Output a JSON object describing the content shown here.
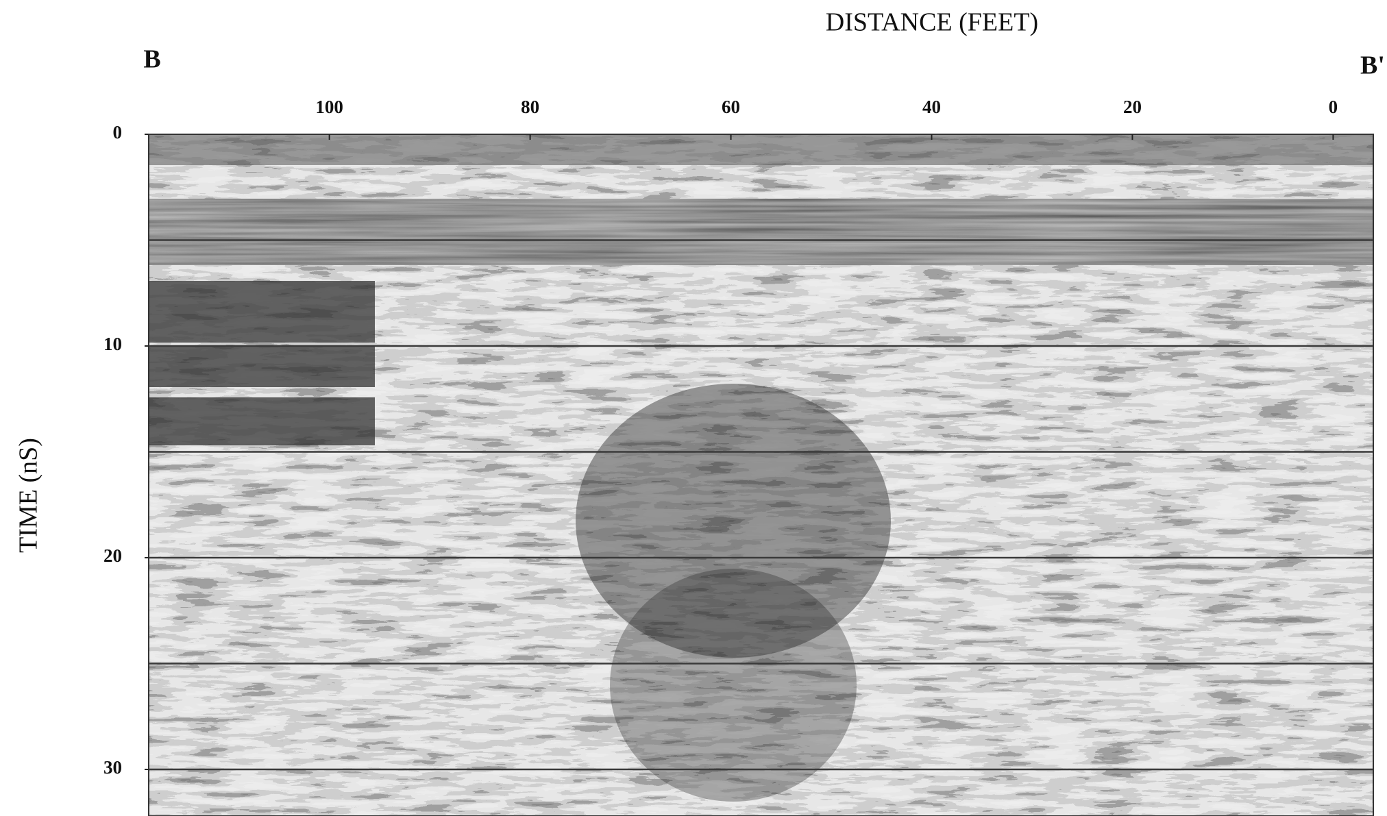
{
  "chart_data": {
    "type": "radargram",
    "title": "DISTANCE (FEET)",
    "start_label": "B",
    "end_label": "B'",
    "y_label": "TIME (nS)",
    "xlim": [
      118,
      -4
    ],
    "xticks": [
      100,
      80,
      60,
      40,
      20,
      0
    ],
    "ylim": [
      0,
      32.2
    ],
    "yticks": [
      0,
      10,
      20,
      30
    ],
    "gridlines": [
      5,
      10,
      15,
      20,
      25,
      30
    ],
    "grid": true
  }
}
